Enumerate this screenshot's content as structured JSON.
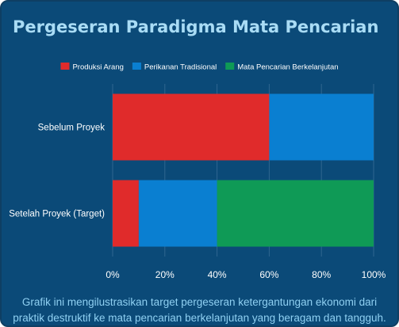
{
  "title": "Pergeseran Paradigma Mata Pencarian",
  "caption": "Grafik ini mengilustrasikan target pergeseran ketergantungan ekonomi dari praktik destruktif ke mata pencarian berkelanjutan yang beragam dan tangguh.",
  "colors": {
    "background": "#0b4a78",
    "title": "#a9dcf5",
    "caption": "#8fd0f2",
    "axis_text": "#ffffff",
    "grid": "#2f6690"
  },
  "chart_data": {
    "type": "bar",
    "orientation": "horizontal",
    "stacked": true,
    "categories": [
      "Sebelum Proyek",
      "Setelah Proyek (Target)"
    ],
    "series": [
      {
        "name": "Produksi Arang",
        "color": "#e02b2b",
        "values": [
          60,
          10
        ]
      },
      {
        "name": "Perikanan Tradisional",
        "color": "#0a7fd1",
        "values": [
          40,
          30
        ]
      },
      {
        "name": "Mata Pencarian Berkelanjutan",
        "color": "#0f9a56",
        "values": [
          0,
          60
        ]
      }
    ],
    "xlim": [
      0,
      100
    ],
    "xticks": [
      "0%",
      "20%",
      "40%",
      "60%",
      "80%",
      "100%"
    ],
    "grid": true,
    "legend": "top"
  }
}
